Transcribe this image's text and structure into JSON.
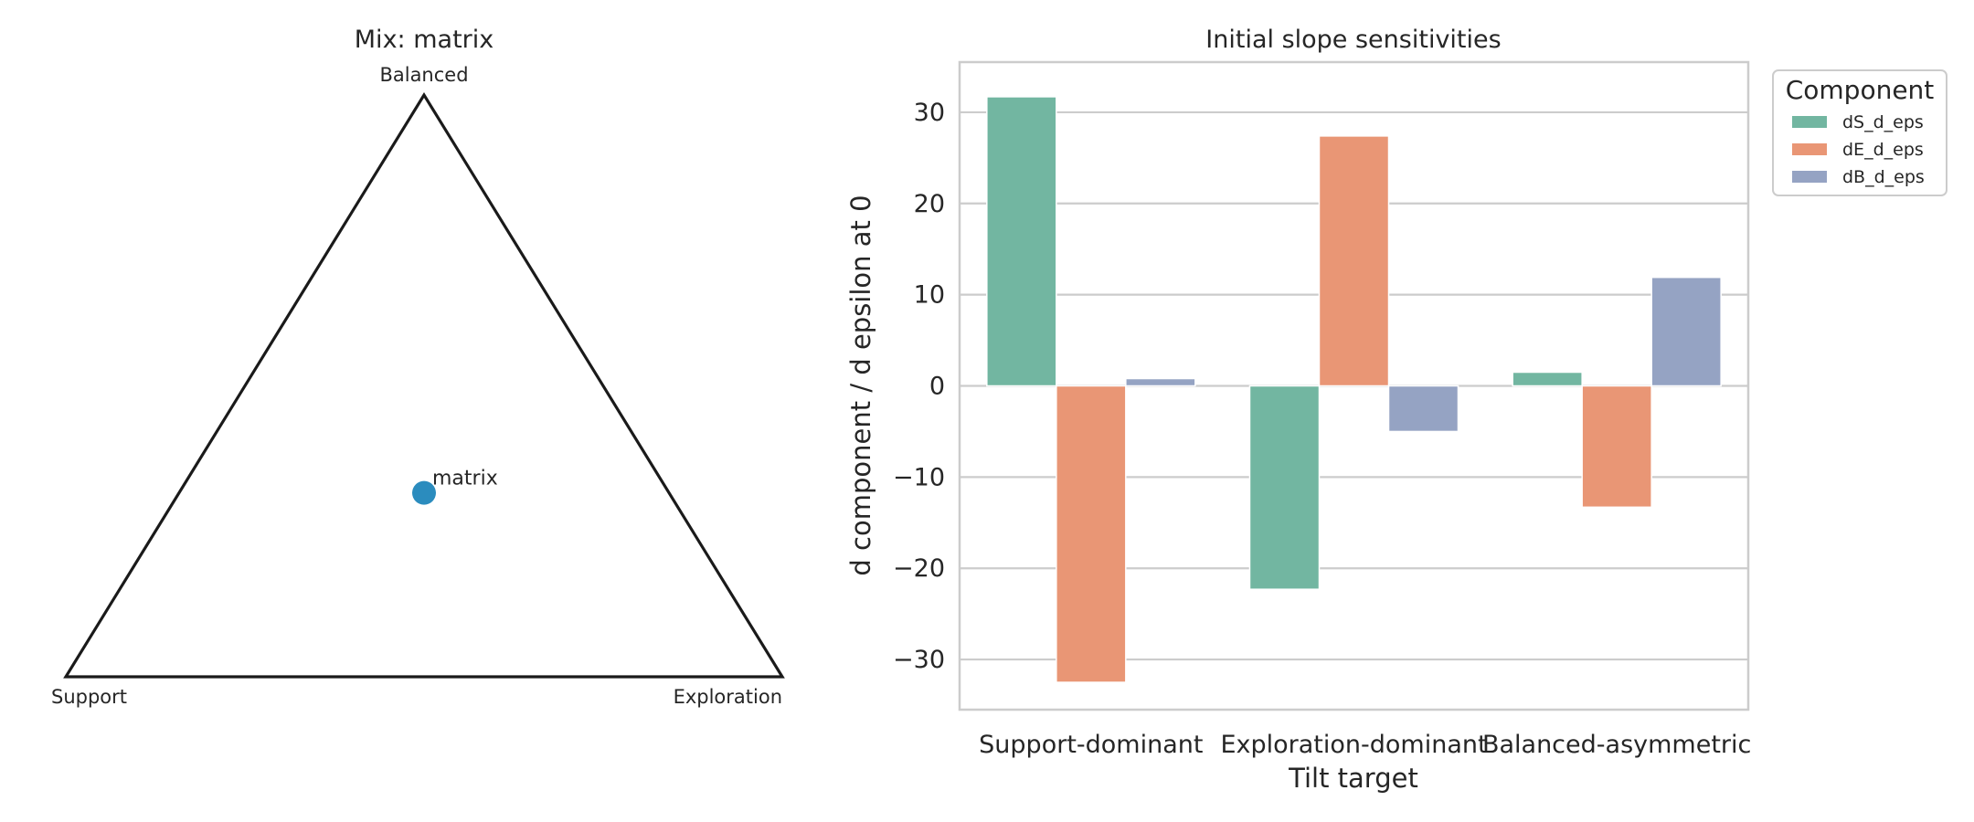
{
  "chart_data": [
    {
      "type": "scatter",
      "subtype": "ternary",
      "title": "Mix: matrix",
      "vertices": {
        "top": "Balanced",
        "left": "Support",
        "right": "Exploration"
      },
      "points": [
        {
          "label": "matrix",
          "Support": 0.333,
          "Exploration": 0.333,
          "Balanced": 0.333,
          "color": "#2b8cbe"
        }
      ]
    },
    {
      "type": "bar",
      "title": "Initial slope sensitivities",
      "xlabel": "Tilt target",
      "ylabel": "d component / d epsilon at 0",
      "categories": [
        "Support-dominant",
        "Exploration-dominant",
        "Balanced-asymmetric"
      ],
      "series": [
        {
          "name": "dS_d_eps",
          "color": "#72b6a1",
          "values": [
            31.7,
            -22.3,
            1.5
          ]
        },
        {
          "name": "dE_d_eps",
          "color": "#e99675",
          "values": [
            -32.5,
            27.4,
            -13.3
          ]
        },
        {
          "name": "dB_d_eps",
          "color": "#95a3c3",
          "values": [
            0.8,
            -5.0,
            11.9
          ]
        }
      ],
      "ylim": [
        -35.5,
        35.5
      ],
      "yticks": [
        30,
        20,
        10,
        0,
        -10,
        -20,
        -30
      ],
      "ytick_labels": [
        "30",
        "20",
        "10",
        "0",
        "−10",
        "−20",
        "−30"
      ],
      "grid": true,
      "legend": {
        "title": "Component",
        "placement": "outside top-right"
      }
    }
  ]
}
